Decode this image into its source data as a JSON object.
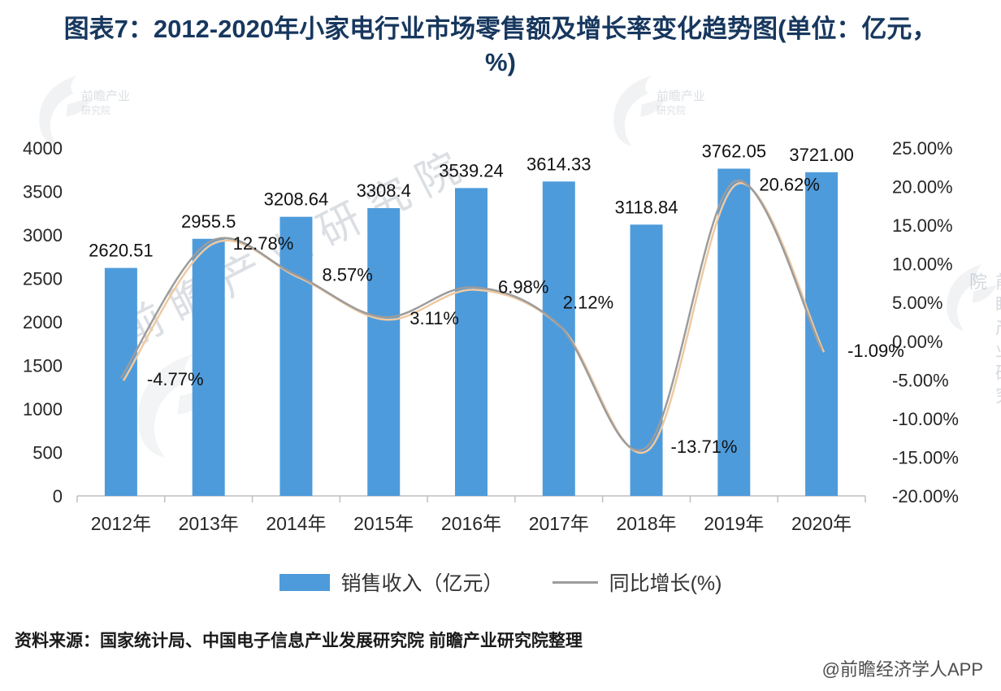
{
  "title": "图表7：2012-2020年小家电行业市场零售额及增长率变化趋势图(单位：亿元，%)",
  "legend": {
    "bars": "销售收入（亿元）",
    "line": "同比增长(%)"
  },
  "source": "资料来源：国家统计局、中国电子信息产业发展研究院 前瞻产业研究院整理",
  "credit": "@前瞻经济学人APP",
  "watermark": {
    "brand": "前瞻产业研究院",
    "line1": "前瞻产业",
    "line2": "研究院"
  },
  "chart_data": {
    "type": "bar+line",
    "title": "2012-2020年小家电行业市场零售额及增长率变化趋势图",
    "categories": [
      "2012年",
      "2013年",
      "2014年",
      "2015年",
      "2016年",
      "2017年",
      "2018年",
      "2019年",
      "2020年"
    ],
    "series": [
      {
        "name": "销售收入（亿元）",
        "type": "bar",
        "color": "#4E9BDB",
        "values": [
          2620.51,
          2955.5,
          3208.64,
          3308.4,
          3539.24,
          3614.33,
          3118.84,
          3762.05,
          3721.0
        ],
        "labels": [
          "2620.51",
          "2955.5",
          "3208.64",
          "3308.4",
          "3539.24",
          "3614.33",
          "3118.84",
          "3762.05",
          "3721.00"
        ]
      },
      {
        "name": "同比增长(%)",
        "type": "line",
        "color": "#9C9C9C",
        "shadow_color": "#EFC9A1",
        "values": [
          -4.77,
          12.78,
          8.57,
          3.11,
          6.98,
          2.12,
          -13.71,
          20.62,
          -1.09
        ],
        "labels": [
          "-4.77%",
          "12.78%",
          "8.57%",
          "3.11%",
          "6.98%",
          "2.12%",
          "-13.71%",
          "20.62%",
          "-1.09%"
        ],
        "label_offsets": [
          [
            32,
            9
          ],
          [
            30,
            9
          ],
          [
            32,
            7
          ],
          [
            32,
            9
          ],
          [
            33,
            7
          ],
          [
            5,
            -20
          ],
          [
            30,
            7
          ],
          [
            31,
            11
          ],
          [
            32,
            9
          ]
        ]
      }
    ],
    "left_axis": {
      "min": 0,
      "max": 4000,
      "step": 500,
      "ticks": [
        "0",
        "500",
        "1000",
        "1500",
        "2000",
        "2500",
        "3000",
        "3500",
        "4000"
      ]
    },
    "right_axis": {
      "min": -20,
      "max": 25,
      "step": 5,
      "ticks": [
        "25.00%",
        "20.00%",
        "15.00%",
        "10.00%",
        "5.00%",
        "0.00%",
        "-5.00%",
        "-10.00%",
        "-15.00%",
        "-20.00%"
      ]
    },
    "grid": false,
    "legend_position": "bottom",
    "axis_line_color": "#BFBFBF"
  }
}
